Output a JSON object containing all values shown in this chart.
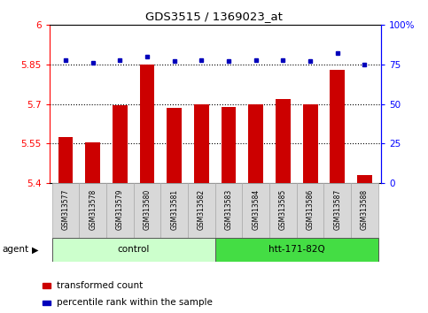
{
  "title": "GDS3515 / 1369023_at",
  "categories": [
    "GSM313577",
    "GSM313578",
    "GSM313579",
    "GSM313580",
    "GSM313581",
    "GSM313582",
    "GSM313583",
    "GSM313584",
    "GSM313585",
    "GSM313586",
    "GSM313587",
    "GSM313588"
  ],
  "red_values": [
    5.575,
    5.555,
    5.695,
    5.85,
    5.685,
    5.7,
    5.69,
    5.7,
    5.72,
    5.7,
    5.83,
    5.43
  ],
  "blue_values": [
    78,
    76,
    78,
    80,
    77,
    78,
    77,
    78,
    78,
    77,
    82,
    75
  ],
  "ylim_left": [
    5.4,
    6.0
  ],
  "ylim_right": [
    0,
    100
  ],
  "yticks_left": [
    5.4,
    5.55,
    5.7,
    5.85,
    6.0
  ],
  "ytick_labels_left": [
    "5.4",
    "5.55",
    "5.7",
    "5.85",
    "6"
  ],
  "yticks_right": [
    0,
    25,
    50,
    75,
    100
  ],
  "ytick_labels_right": [
    "0",
    "25",
    "50",
    "75",
    "100%"
  ],
  "dotted_lines": [
    5.55,
    5.7,
    5.85
  ],
  "groups": [
    {
      "label": "control",
      "start": 0,
      "end": 6,
      "color": "#ccffcc",
      "border": "#555555"
    },
    {
      "label": "htt-171-82Q",
      "start": 6,
      "end": 12,
      "color": "#44dd44",
      "border": "#555555"
    }
  ],
  "agent_label": "agent",
  "legend_items": [
    {
      "label": "transformed count",
      "color": "#cc0000"
    },
    {
      "label": "percentile rank within the sample",
      "color": "#0000bb"
    }
  ],
  "bar_color": "#cc0000",
  "dot_color": "#0000bb",
  "bar_width": 0.55,
  "plot_bg": "#ffffff",
  "label_bg": "#d8d8d8"
}
